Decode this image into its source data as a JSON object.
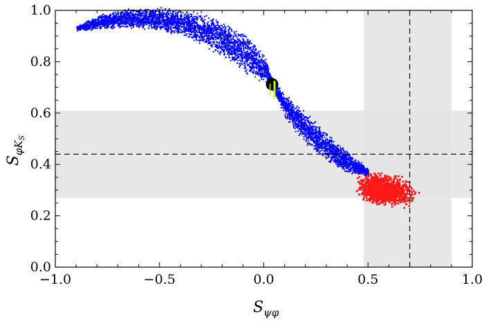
{
  "chart_data": {
    "type": "scatter",
    "title": "",
    "xlabel": {
      "main": "S",
      "sub": "ψφ"
    },
    "ylabel": {
      "main": "S",
      "sub": "φK",
      "subsub": "S"
    },
    "xlim": [
      -1.0,
      1.0
    ],
    "ylim": [
      0.0,
      1.0
    ],
    "x_ticks": [
      "−1.0",
      "−0.5",
      "0.0",
      "0.5",
      "1.0"
    ],
    "y_ticks": [
      "0.0",
      "0.2",
      "0.4",
      "0.6",
      "0.8",
      "1.0"
    ],
    "grid": false,
    "legend": "none",
    "bands": [
      {
        "axis": "x",
        "range": [
          0.48,
          0.9
        ],
        "color": "#e3e3e3"
      },
      {
        "axis": "y",
        "range": [
          0.27,
          0.61
        ],
        "color": "#e3e3e3"
      }
    ],
    "reference_lines": [
      {
        "axis": "x",
        "value": 0.7,
        "style": "dashed"
      },
      {
        "axis": "y",
        "value": 0.44,
        "style": "dashed"
      }
    ],
    "series": [
      {
        "color": "#0000ff",
        "kind": "dense-band",
        "centerline": [
          [
            -0.9,
            0.93
          ],
          [
            -0.8,
            0.955
          ],
          [
            -0.7,
            0.968
          ],
          [
            -0.6,
            0.972
          ],
          [
            -0.5,
            0.968
          ],
          [
            -0.4,
            0.955
          ],
          [
            -0.3,
            0.93
          ],
          [
            -0.2,
            0.89
          ],
          [
            -0.1,
            0.84
          ],
          [
            0.0,
            0.775
          ],
          [
            0.05,
            0.7
          ],
          [
            0.1,
            0.63
          ],
          [
            0.2,
            0.54
          ],
          [
            0.3,
            0.47
          ],
          [
            0.4,
            0.41
          ],
          [
            0.5,
            0.37
          ]
        ],
        "halfwidth": [
          [
            -0.9,
            0.006
          ],
          [
            -0.8,
            0.018
          ],
          [
            -0.6,
            0.026
          ],
          [
            -0.4,
            0.032
          ],
          [
            -0.2,
            0.045
          ],
          [
            -0.1,
            0.05
          ],
          [
            0.0,
            0.035
          ],
          [
            0.04,
            0.014
          ],
          [
            0.1,
            0.03
          ],
          [
            0.2,
            0.04
          ],
          [
            0.3,
            0.035
          ],
          [
            0.4,
            0.028
          ],
          [
            0.5,
            0.01
          ]
        ]
      },
      {
        "color": "#ff1a1a",
        "kind": "blob",
        "center": [
          0.57,
          0.3
        ],
        "xrange": [
          0.4,
          0.87
        ],
        "yrange": [
          0.19,
          0.4
        ]
      },
      {
        "kind": "marker",
        "x": 0.04,
        "y": 0.712,
        "color": "#000000",
        "accent": "#b4ff28"
      }
    ]
  }
}
